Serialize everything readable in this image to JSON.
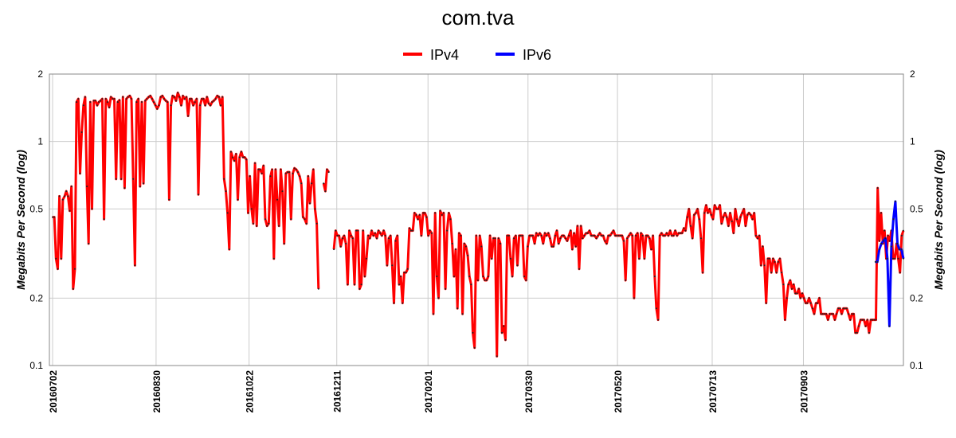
{
  "chart_data": {
    "type": "line",
    "title": "com.tva",
    "ylabel": "Megabits Per Second (log)",
    "y_scale": "log",
    "ylim": [
      0.1,
      2
    ],
    "y_ticks": [
      {
        "value": 0.1,
        "label": "0.1"
      },
      {
        "value": 0.2,
        "label": "0.2"
      },
      {
        "value": 0.5,
        "label": "0.5"
      },
      {
        "value": 1,
        "label": "1"
      },
      {
        "value": 2,
        "label": "2"
      }
    ],
    "x_tick_labels": [
      "20160702",
      "20160830",
      "20161022",
      "20161211",
      "20170201",
      "20170330",
      "20170520",
      "20170713",
      "20170903"
    ],
    "grid": true,
    "legend_position": "top-center",
    "series": [
      {
        "name": "IPv4",
        "color": "#ff0000",
        "x_start": "20160702",
        "x_end": "20171030",
        "values": [
          0.46,
          0.46,
          0.3,
          0.27,
          0.57,
          0.3,
          0.55,
          0.57,
          0.6,
          0.57,
          0.49,
          0.63,
          0.22,
          0.27,
          1.5,
          1.55,
          0.72,
          1.1,
          1.45,
          1.58,
          0.63,
          0.35,
          1.5,
          0.5,
          1.52,
          1.52,
          1.45,
          1.5,
          1.52,
          1.55,
          0.45,
          1.55,
          1.5,
          1.42,
          1.58,
          1.55,
          1.55,
          0.68,
          1.5,
          1.53,
          0.68,
          1.58,
          0.62,
          1.55,
          1.58,
          1.6,
          1.55,
          0.68,
          0.28,
          1.5,
          1.55,
          0.63,
          1.5,
          0.65,
          1.52,
          1.55,
          1.58,
          1.6,
          1.55,
          1.5,
          1.45,
          1.4,
          1.45,
          1.58,
          1.6,
          1.55,
          1.52,
          1.5,
          0.55,
          1.45,
          1.6,
          1.58,
          1.52,
          1.65,
          1.58,
          1.45,
          1.6,
          1.55,
          1.58,
          1.3,
          1.55,
          1.55,
          1.45,
          1.5,
          1.55,
          0.58,
          1.45,
          1.55,
          1.55,
          1.45,
          1.58,
          1.48,
          1.45,
          1.5,
          1.52,
          1.55,
          1.6,
          1.58,
          1.45,
          1.58,
          0.68,
          0.6,
          0.48,
          0.33,
          0.9,
          0.85,
          0.82,
          0.88,
          0.55,
          0.85,
          0.9,
          0.85,
          0.85,
          0.83,
          0.48,
          0.7,
          0.5,
          0.43,
          0.8,
          0.42,
          0.75,
          0.75,
          0.72,
          0.78,
          0.45,
          0.42,
          0.43,
          0.7,
          0.75,
          0.3,
          0.75,
          0.55,
          0.42,
          0.75,
          0.6,
          0.35,
          0.72,
          0.73,
          0.73,
          0.45,
          0.72,
          0.76,
          0.75,
          0.73,
          0.7,
          0.65,
          0.46,
          0.45,
          0.43,
          0.7,
          0.53,
          0.65,
          0.75,
          0.5,
          0.43,
          0.22,
          null,
          null,
          0.65,
          0.6,
          0.75,
          0.73,
          null,
          null,
          0.33,
          0.4,
          0.38,
          0.38,
          0.34,
          0.37,
          0.38,
          0.35,
          0.23,
          0.4,
          0.38,
          0.37,
          0.23,
          0.4,
          0.4,
          0.22,
          0.23,
          0.4,
          0.25,
          0.3,
          0.38,
          0.37,
          0.4,
          0.38,
          0.39,
          0.37,
          0.4,
          0.39,
          0.38,
          0.4,
          0.38,
          0.28,
          0.37,
          0.38,
          0.28,
          0.19,
          0.36,
          0.38,
          0.23,
          0.25,
          0.19,
          0.26,
          0.26,
          0.27,
          0.41,
          0.4,
          0.4,
          0.48,
          0.47,
          0.45,
          0.47,
          0.38,
          0.48,
          0.48,
          0.46,
          0.38,
          0.4,
          0.39,
          0.17,
          0.48,
          0.25,
          0.2,
          0.49,
          0.47,
          0.48,
          0.22,
          0.4,
          0.48,
          0.45,
          0.35,
          0.25,
          0.33,
          0.18,
          0.39,
          0.38,
          0.17,
          0.35,
          0.34,
          0.31,
          0.25,
          0.23,
          0.14,
          0.12,
          0.38,
          0.24,
          0.38,
          0.34,
          0.25,
          0.24,
          0.24,
          0.25,
          0.38,
          0.3,
          0.37,
          0.37,
          0.11,
          0.37,
          0.35,
          0.14,
          0.15,
          0.13,
          0.38,
          0.38,
          0.3,
          0.25,
          0.37,
          0.38,
          0.28,
          0.38,
          0.38,
          0.38,
          0.25,
          0.24,
          0.34,
          0.38,
          0.38,
          0.38,
          0.35,
          0.39,
          0.38,
          0.39,
          0.38,
          0.35,
          0.39,
          0.38,
          0.39,
          0.37,
          0.34,
          0.34,
          0.38,
          0.4,
          0.35,
          0.37,
          0.38,
          0.38,
          0.37,
          0.36,
          0.38,
          0.4,
          0.33,
          0.39,
          0.34,
          0.42,
          0.27,
          0.42,
          0.37,
          0.38,
          0.39,
          0.39,
          0.4,
          0.38,
          0.38,
          0.38,
          0.37,
          0.38,
          0.39,
          0.38,
          0.38,
          0.36,
          0.35,
          0.38,
          0.38,
          0.39,
          0.4,
          0.38,
          0.38,
          0.38,
          0.38,
          0.38,
          0.36,
          0.24,
          0.37,
          0.38,
          0.39,
          0.38,
          0.2,
          0.38,
          0.39,
          0.3,
          0.39,
          0.38,
          0.3,
          0.38,
          0.38,
          0.37,
          0.33,
          0.38,
          0.25,
          0.18,
          0.16,
          0.38,
          0.39,
          0.38,
          0.38,
          0.39,
          0.38,
          0.4,
          0.38,
          0.38,
          0.4,
          0.38,
          0.39,
          0.39,
          0.39,
          0.41,
          0.4,
          0.46,
          0.5,
          0.42,
          0.37,
          0.47,
          0.48,
          0.5,
          0.45,
          0.37,
          0.26,
          0.48,
          0.52,
          0.48,
          0.5,
          0.47,
          0.45,
          0.52,
          0.5,
          0.5,
          0.52,
          0.43,
          0.46,
          0.48,
          0.46,
          0.42,
          0.48,
          0.44,
          0.39,
          0.5,
          0.45,
          0.42,
          0.46,
          0.48,
          0.5,
          0.42,
          0.47,
          0.48,
          0.47,
          0.45,
          0.48,
          0.38,
          0.37,
          0.38,
          0.28,
          0.34,
          0.28,
          0.19,
          0.3,
          0.3,
          0.26,
          0.3,
          0.29,
          0.26,
          0.29,
          0.3,
          0.26,
          0.23,
          0.16,
          0.2,
          0.23,
          0.24,
          0.22,
          0.23,
          0.21,
          0.21,
          0.22,
          0.2,
          0.21,
          0.2,
          0.19,
          0.19,
          0.2,
          0.19,
          0.18,
          0.17,
          0.19,
          0.19,
          0.2,
          0.17,
          0.17,
          0.17,
          0.17,
          0.16,
          0.17,
          0.17,
          0.17,
          0.16,
          0.17,
          0.18,
          0.18,
          0.17,
          0.18,
          0.18,
          0.18,
          0.17,
          0.16,
          0.17,
          0.17,
          0.14,
          0.14,
          0.15,
          0.16,
          0.16,
          0.16,
          0.15,
          0.16,
          0.14,
          0.16,
          0.16,
          0.16,
          0.16,
          0.62,
          0.36,
          0.48,
          0.35,
          0.4,
          0.3,
          0.38,
          0.36,
          0.4,
          0.3,
          0.3,
          0.35,
          0.3,
          0.26,
          0.38,
          0.4
        ]
      },
      {
        "name": "IPv6",
        "color": "#0000ff",
        "x_start": "20171014",
        "x_end": "20171030",
        "values": [
          0.29,
          0.29,
          0.33,
          0.35,
          0.36,
          0.37,
          0.3,
          0.15,
          0.34,
          0.45,
          0.54,
          0.35,
          0.33,
          0.33,
          0.3
        ]
      }
    ]
  }
}
